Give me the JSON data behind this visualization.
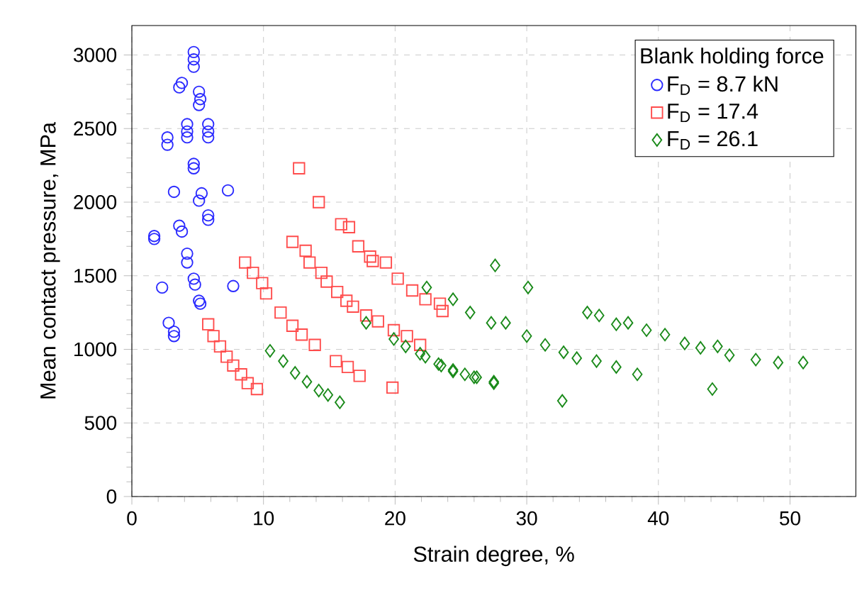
{
  "chart_data": {
    "type": "scatter",
    "xlabel": "Strain degree, %",
    "ylabel": "Mean contact pressure, MPa",
    "legend_title": "Blank holding force",
    "xlim": [
      0,
      55
    ],
    "ylim": [
      0,
      3200
    ],
    "xticks": [
      0,
      10,
      20,
      30,
      40,
      50
    ],
    "yticks": [
      0,
      500,
      1000,
      1500,
      2000,
      2500,
      3000
    ],
    "grid": true,
    "legend": "top right",
    "series": [
      {
        "name": "F$_{D}$ = 8.7 kN",
        "color": "#2a2aff",
        "marker": "circle",
        "x": [
          4.7,
          4.7,
          4.7,
          3.8,
          3.6,
          5.1,
          5.2,
          5.1,
          4.2,
          4.2,
          4.2,
          5.8,
          5.8,
          5.8,
          2.7,
          2.7,
          4.7,
          4.7,
          3.2,
          5.3,
          5.1,
          7.3,
          5.8,
          5.8,
          3.6,
          3.8,
          1.7,
          1.7,
          4.2,
          4.2,
          2.3,
          4.7,
          4.8,
          7.7,
          5.1,
          5.2,
          2.8,
          3.2,
          3.2
        ],
        "values": [
          3020,
          2970,
          2920,
          2810,
          2780,
          2750,
          2700,
          2660,
          2530,
          2480,
          2440,
          2530,
          2480,
          2440,
          2440,
          2390,
          2260,
          2230,
          2070,
          2060,
          2010,
          2080,
          1910,
          1880,
          1840,
          1800,
          1770,
          1750,
          1650,
          1590,
          1420,
          1480,
          1440,
          1430,
          1330,
          1310,
          1180,
          1120,
          1090
        ]
      },
      {
        "name": "F$_{D}$ = 17.4",
        "color": "#ff4c4c",
        "marker": "square",
        "x": [
          12.7,
          14.2,
          15.9,
          16.5,
          17.2,
          18.1,
          18.3,
          19.3,
          20.2,
          21.3,
          22.3,
          23.6,
          23.4,
          12.2,
          13.2,
          13.5,
          14.4,
          14.8,
          15.6,
          16.3,
          16.8,
          17.8,
          18.7,
          19.9,
          20.9,
          21.9,
          19.8,
          8.6,
          9.2,
          9.9,
          10.2,
          11.3,
          12.2,
          12.9,
          13.9,
          15.5,
          16.4,
          17.3,
          5.8,
          6.2,
          6.7,
          7.2,
          7.7,
          8.3,
          8.8,
          9.5
        ],
        "values": [
          2230,
          2000,
          1850,
          1830,
          1700,
          1630,
          1600,
          1590,
          1480,
          1400,
          1340,
          1260,
          1310,
          1730,
          1670,
          1590,
          1520,
          1460,
          1390,
          1330,
          1290,
          1230,
          1190,
          1130,
          1090,
          1030,
          740,
          1590,
          1520,
          1450,
          1380,
          1250,
          1160,
          1100,
          1030,
          920,
          880,
          820,
          1170,
          1090,
          1020,
          950,
          890,
          830,
          770,
          730
        ]
      },
      {
        "name": "F$_{D}$ = 26.1",
        "color": "#1a8a1a",
        "marker": "diamond",
        "x": [
          10.5,
          11.5,
          12.4,
          13.3,
          14.2,
          14.9,
          15.8,
          17.8,
          19.9,
          20.8,
          21.9,
          23.3,
          24.4,
          26.0,
          27.5,
          22.4,
          22.3,
          23.5,
          24.4,
          25.3,
          26.2,
          27.5,
          27.6,
          30.1,
          24.4,
          25.7,
          27.3,
          28.4,
          30.0,
          31.4,
          32.8,
          33.8,
          32.7,
          35.3,
          36.8,
          38.4,
          34.6,
          35.5,
          36.8,
          37.7,
          39.1,
          40.5,
          42.0,
          43.2,
          44.5,
          45.4,
          47.4,
          49.1,
          44.1,
          51.0
        ],
        "values": [
          990,
          920,
          840,
          780,
          720,
          690,
          640,
          1180,
          1070,
          1020,
          970,
          900,
          860,
          810,
          780,
          1420,
          950,
          890,
          850,
          830,
          810,
          770,
          1570,
          1420,
          1340,
          1250,
          1180,
          1180,
          1090,
          1030,
          980,
          940,
          650,
          920,
          880,
          830,
          1250,
          1230,
          1170,
          1180,
          1130,
          1100,
          1040,
          1010,
          1020,
          960,
          930,
          910,
          730,
          910
        ]
      }
    ]
  }
}
